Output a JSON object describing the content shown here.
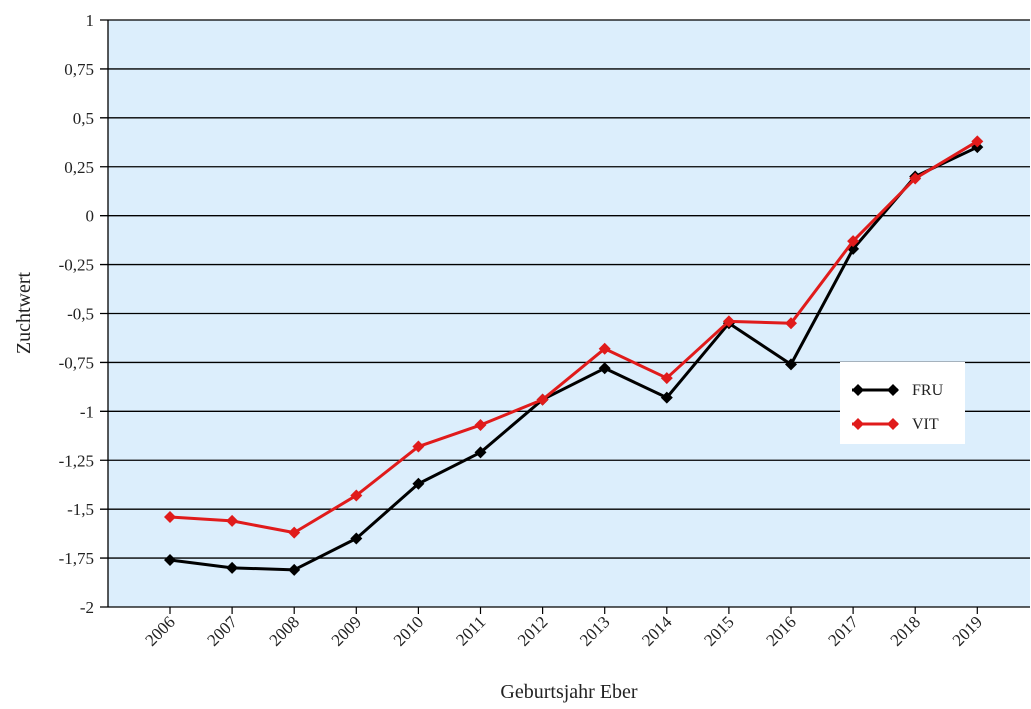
{
  "chart_data": {
    "type": "line",
    "xlabel": "Geburtsjahr Eber",
    "ylabel": "Zuchtwert",
    "ylim": [
      -2,
      1
    ],
    "y_ticks": [
      1,
      0.75,
      0.5,
      0.25,
      0,
      -0.25,
      -0.5,
      -0.75,
      -1,
      -1.25,
      -1.5,
      -1.75,
      -2
    ],
    "y_tick_labels": [
      "1",
      "0,75",
      "0,5",
      "0,25",
      "0",
      "-0,25",
      "-0,5",
      "-0,75",
      "-1",
      "-1,25",
      "-1,5",
      "-1,75",
      "-2"
    ],
    "categories": [
      "2006",
      "2007",
      "2008",
      "2009",
      "2010",
      "2011",
      "2012",
      "2013",
      "2014",
      "2015",
      "2016",
      "2017",
      "2018",
      "2019"
    ],
    "series": [
      {
        "name": "FRU",
        "color": "#000000",
        "values": [
          -1.76,
          -1.8,
          -1.81,
          -1.65,
          -1.37,
          -1.21,
          -0.94,
          -0.78,
          -0.93,
          -0.55,
          -0.76,
          -0.17,
          0.2,
          0.35
        ]
      },
      {
        "name": "VIT",
        "color": "#e01b1b",
        "values": [
          -1.54,
          -1.56,
          -1.62,
          -1.43,
          -1.18,
          -1.07,
          -0.94,
          -0.68,
          -0.83,
          -0.54,
          -0.55,
          -0.13,
          0.19,
          0.38
        ]
      }
    ],
    "legend_position": "right",
    "grid": true,
    "plot_background": "#dceefc"
  }
}
